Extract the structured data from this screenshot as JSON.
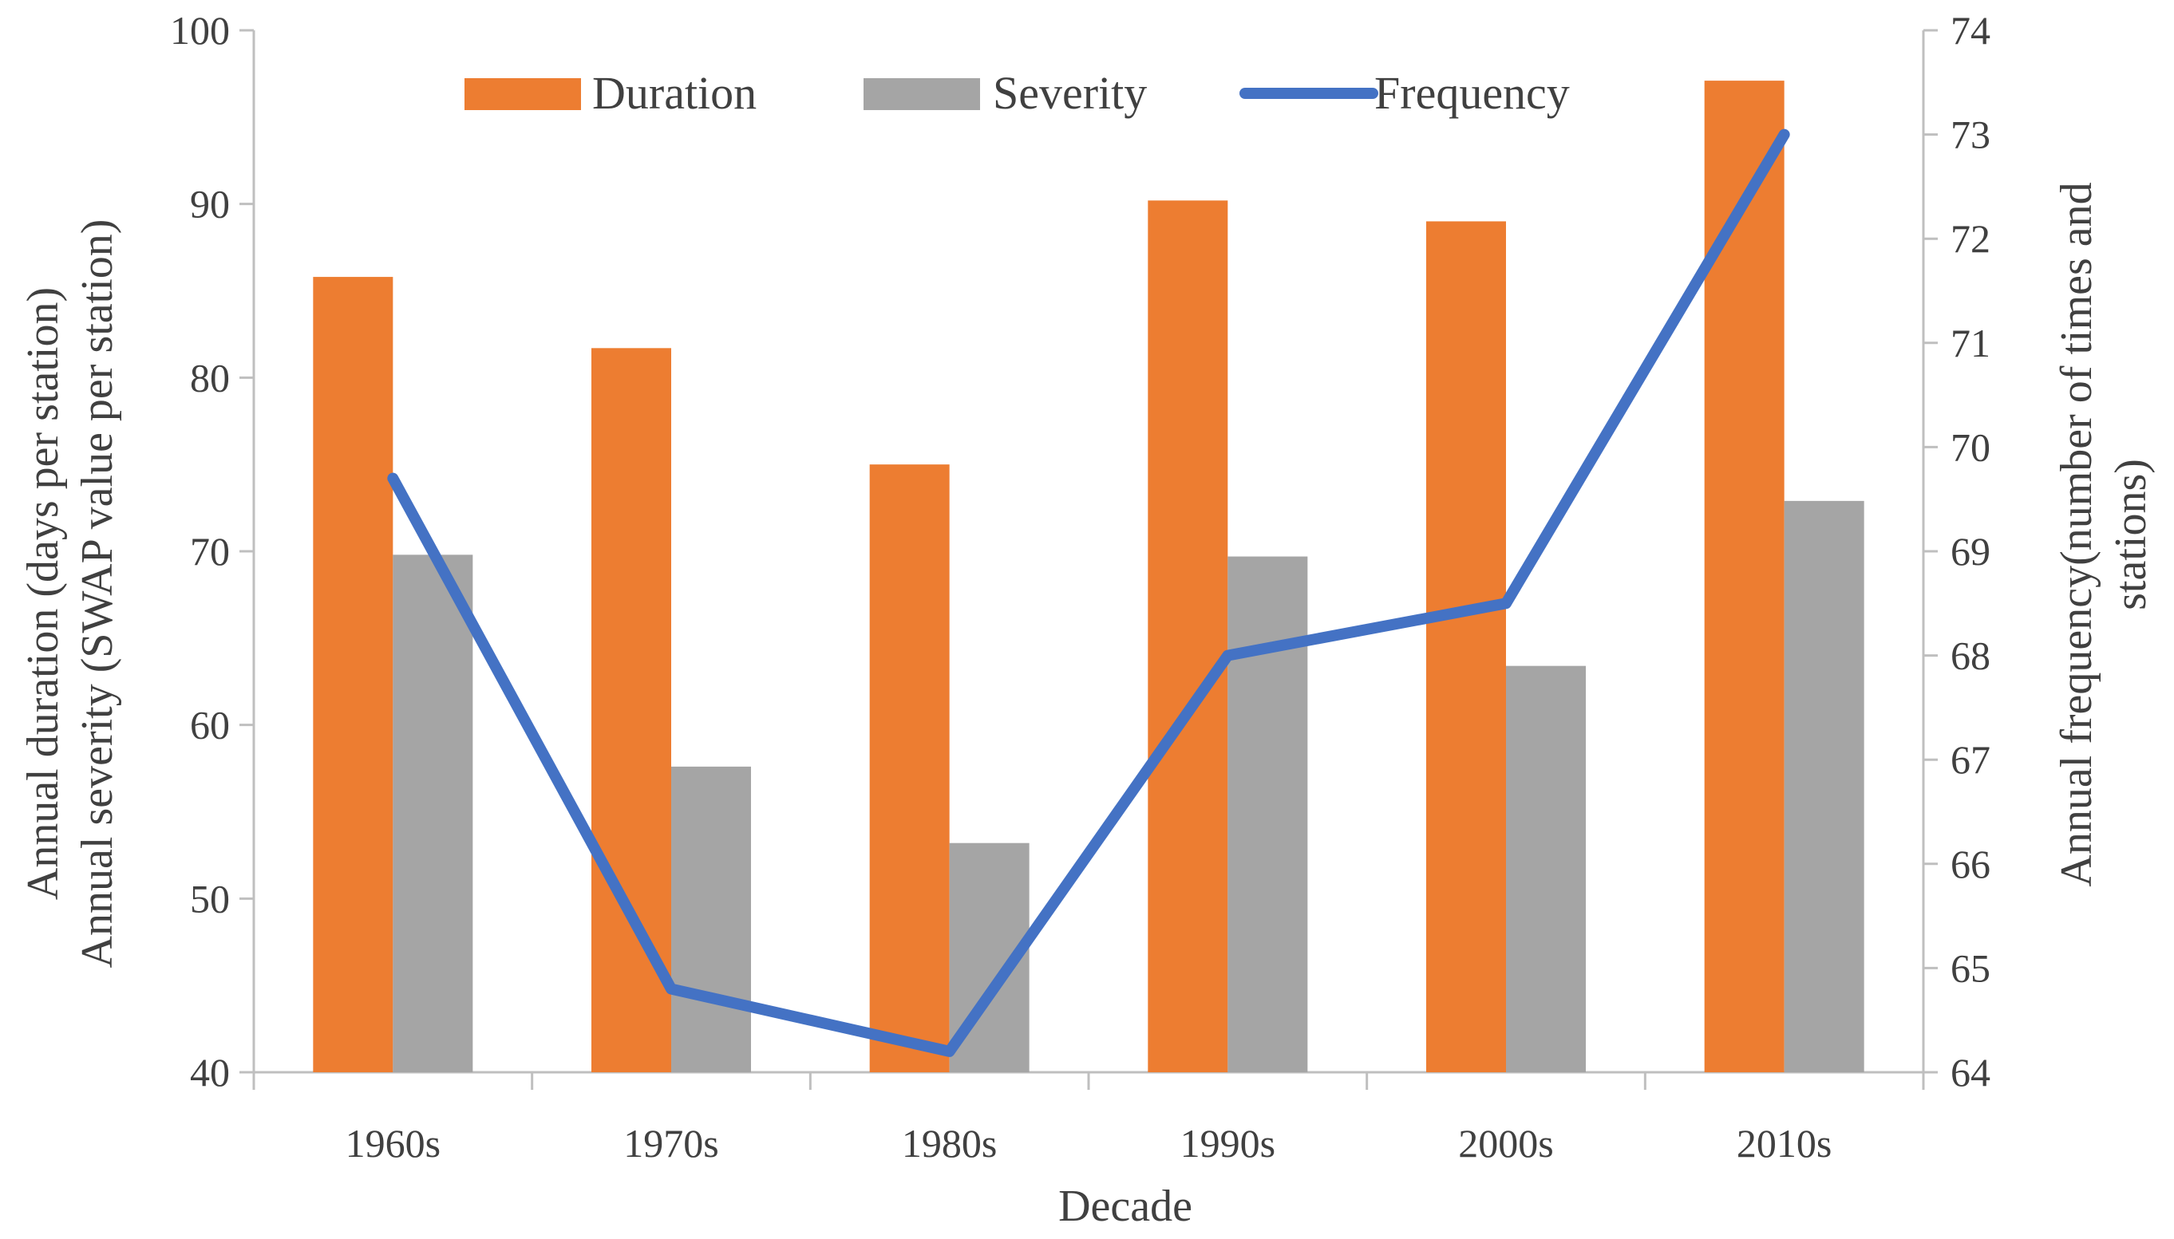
{
  "chart_data": {
    "type": "bar",
    "categories": [
      "1960s",
      "1970s",
      "1980s",
      "1990s",
      "2000s",
      "2010s"
    ],
    "series": [
      {
        "name": "Duration",
        "type": "bar",
        "axis": "left",
        "values": [
          85.8,
          81.7,
          75.0,
          90.2,
          89.0,
          97.1
        ]
      },
      {
        "name": "Severity",
        "type": "bar",
        "axis": "left",
        "values": [
          69.8,
          57.6,
          53.2,
          69.7,
          63.4,
          72.9
        ]
      },
      {
        "name": "Frequency",
        "type": "line",
        "axis": "right",
        "values": [
          69.7,
          64.8,
          64.2,
          68.0,
          68.5,
          73.0
        ]
      }
    ],
    "xlabel": "Decade",
    "ylabel_left_line1": "Annual duration (days per station)",
    "ylabel_left_line2": "Annual severity (SWAP value per station)",
    "ylabel_right_line1": "Annual frequency(number of times and",
    "ylabel_right_line2": "stations)",
    "ylim_left": [
      40,
      100
    ],
    "yticks_left": [
      "40",
      "50",
      "60",
      "70",
      "80",
      "90",
      "100"
    ],
    "ylim_right": [
      64,
      74
    ],
    "yticks_right": [
      "64",
      "65",
      "66",
      "67",
      "68",
      "69",
      "70",
      "71",
      "72",
      "73",
      "74"
    ],
    "grid": false,
    "legend_position": "top-center",
    "colors": {
      "Duration": "#ED7D31",
      "Severity": "#A5A5A5",
      "Frequency": "#4472C4",
      "axis": "#BFBFBF"
    }
  }
}
